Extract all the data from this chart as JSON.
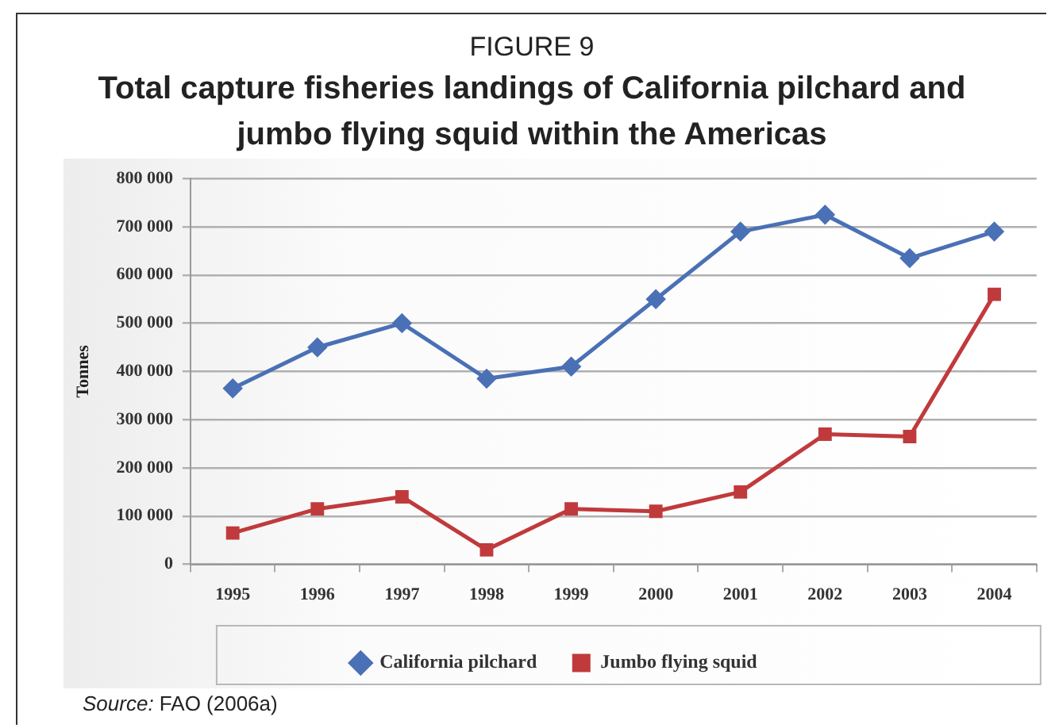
{
  "chart_data": {
    "type": "line",
    "title": "Total capture fisheries landings of California pilchard and jumbo flying squid within the Americas",
    "ylabel": "Tonnes",
    "annotations": [
      "FIGURE 9",
      "Source: FAO (2006a)"
    ],
    "categories": [
      "1995",
      "1996",
      "1997",
      "1998",
      "1999",
      "2000",
      "2001",
      "2002",
      "2003",
      "2004"
    ],
    "series": [
      {
        "name": "California pilchard",
        "color": "#4a70b5",
        "marker": "diamond",
        "values": [
          365000,
          450000,
          500000,
          385000,
          410000,
          550000,
          690000,
          725000,
          635000,
          690000
        ]
      },
      {
        "name": "Jumbo flying squid",
        "color": "#c03a3c",
        "marker": "square",
        "values": [
          65000,
          115000,
          140000,
          30000,
          115000,
          110000,
          150000,
          270000,
          265000,
          560000
        ]
      }
    ],
    "ylim": [
      0,
      800000
    ],
    "yticks": [
      0,
      {
        "value": 100000,
        "label": "100 000"
      },
      {
        "value": 200000,
        "label": "200 000"
      },
      {
        "value": 300000,
        "label": "300 000"
      },
      {
        "value": 400000,
        "label": "400 000"
      },
      {
        "value": 500000,
        "label": "500 000"
      },
      {
        "value": 600000,
        "label": "600 000"
      },
      {
        "value": 700000,
        "label": "700 000"
      },
      {
        "value": 800000,
        "label": "800 000"
      }
    ],
    "grid": "y",
    "legend": "bottom",
    "line_style": "solid"
  }
}
